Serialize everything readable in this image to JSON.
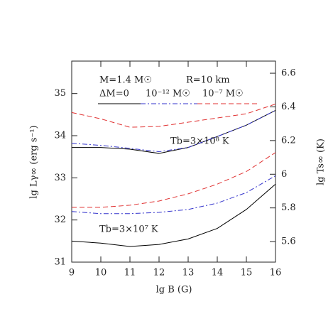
{
  "chart_data": {
    "type": "line",
    "xlabel": "lg B (G)",
    "ylabel": "lg Lγ∞ (erg s⁻¹)",
    "y2label": "lg Ts∞ (K)",
    "x": [
      9,
      10,
      11,
      12,
      13,
      14,
      15,
      16
    ],
    "xlim": [
      9,
      16
    ],
    "xticks": [
      9,
      10,
      11,
      12,
      13,
      14,
      15,
      16
    ],
    "ylim": [
      31,
      35.77
    ],
    "yticks": [
      31,
      32,
      33,
      34,
      35
    ],
    "y2lim": [
      5.478,
      6.672
    ],
    "y2ticks": [
      5.6,
      5.8,
      6,
      6.2,
      6.4,
      6.6
    ],
    "series": [
      {
        "color": "#000000",
        "dash": "solid",
        "values": [
          33.72,
          33.72,
          33.68,
          33.58,
          33.72,
          33.98,
          34.25,
          34.6
        ]
      },
      {
        "color": "#3333cc",
        "dash": "dashdot",
        "values": [
          33.82,
          33.77,
          33.7,
          33.62,
          33.72,
          33.98,
          34.25,
          34.6
        ]
      },
      {
        "color": "#e03030",
        "dash": "dashed",
        "values": [
          34.55,
          34.4,
          34.2,
          34.22,
          34.32,
          34.42,
          34.52,
          34.75
        ]
      },
      {
        "color": "#000000",
        "dash": "solid",
        "values": [
          31.5,
          31.45,
          31.37,
          31.42,
          31.55,
          31.8,
          32.25,
          32.85
        ]
      },
      {
        "color": "#3333cc",
        "dash": "dashdot",
        "values": [
          32.2,
          32.15,
          32.15,
          32.18,
          32.25,
          32.4,
          32.65,
          33.05
        ]
      },
      {
        "color": "#e03030",
        "dash": "dashed",
        "values": [
          32.3,
          32.3,
          32.35,
          32.45,
          32.62,
          32.85,
          33.15,
          33.6
        ]
      }
    ],
    "legend": [
      {
        "label": "ΔM=0",
        "series": 0
      },
      {
        "label": "10⁻¹² M☉",
        "series": 1
      },
      {
        "label": "10⁻⁷ M☉",
        "series": 2
      }
    ],
    "annotations": [
      "M=1.4 M☉",
      "R=10 km",
      "Tb=3×10⁸ K",
      "Tb=3×10⁷ K"
    ]
  }
}
